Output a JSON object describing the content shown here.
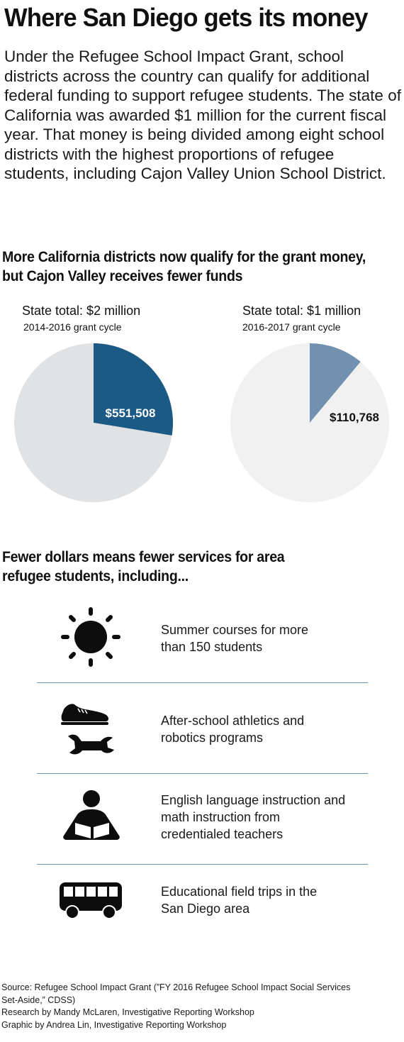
{
  "title": "Where San Diego gets its money",
  "intro": "Under the Refugee School Impact Grant, school districts across the country can qualify for additional federal funding to support refugee students. The state of California was awarded $1 million for the current fiscal year. That money is being divided among eight school districts with the highest proportions of refugee students, including Cajon Valley Union School District.",
  "section1": {
    "line1": "More California districts now qualify for the grant money,",
    "line2": "but Cajon Valley receives fewer funds"
  },
  "section2": {
    "line1": "Fewer dollars means fewer services for area",
    "line2": "refugee students, including..."
  },
  "chart_data": [
    {
      "type": "pie",
      "title": "State total: $2 million",
      "subtitle": "2014-2016 grant cycle",
      "total": 2000000,
      "slices": [
        {
          "label": "$551,508",
          "value": 551508,
          "color": "#1a5a85"
        },
        {
          "label": "",
          "value": 1448492,
          "color": "#e1e2e4"
        }
      ]
    },
    {
      "type": "pie",
      "title": "State total: $1 million",
      "subtitle": "2016-2017 grant cycle",
      "total": 1000000,
      "slices": [
        {
          "label": "$110,768",
          "value": 110768,
          "color": "#7290b0"
        },
        {
          "label": "",
          "value": 889232,
          "color": "#f1f1f2"
        }
      ]
    }
  ],
  "services": [
    {
      "line1": "Summer courses for more",
      "line2": "than 150 students",
      "line3": "",
      "icons": [
        "sun-icon"
      ]
    },
    {
      "line1": "After-school athletics and",
      "line2": "robotics programs",
      "line3": "",
      "icons": [
        "sneaker-icon",
        "wrench-icon"
      ]
    },
    {
      "line1": "English language instruction and",
      "line2": "math instruction from",
      "line3": "credentialed teachers",
      "icons": [
        "reader-icon"
      ]
    },
    {
      "line1": "Educational field trips in the",
      "line2": "San Diego area",
      "line3": "",
      "icons": [
        "bus-icon"
      ]
    }
  ],
  "footer": {
    "source1": "Source: Refugee School Impact Grant (”FY 2016 Refugee School Impact Social Services",
    "source2": "Set-Aside,” CDSS)",
    "research": "Research by Mandy McLaren, Investigative Reporting Workshop",
    "graphic": "Graphic by Andrea Lin, Investigative Reporting Workshop"
  },
  "colors": {
    "divider": "#6e95b1",
    "arrow": "#111111"
  }
}
